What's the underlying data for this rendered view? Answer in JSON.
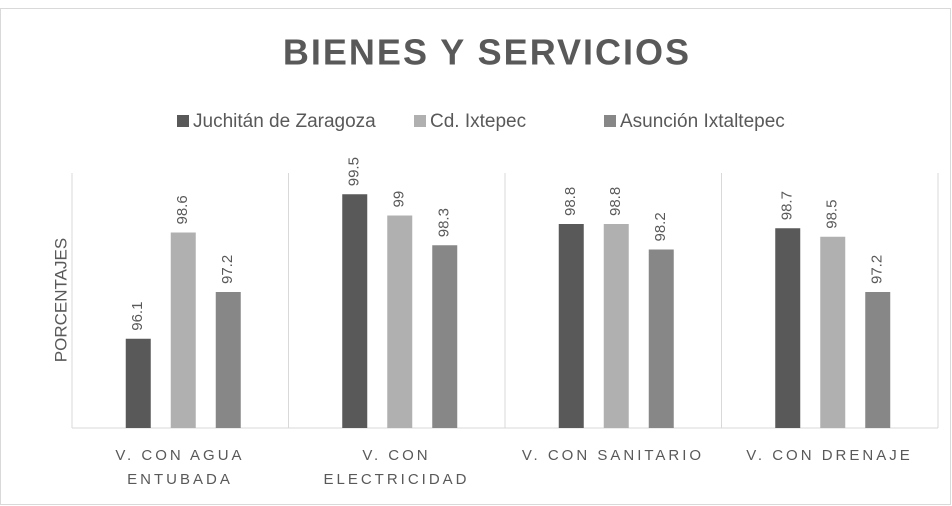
{
  "chart_data": {
    "type": "bar",
    "title": "BIENES Y SERVICIOS",
    "y_label": "PORCENTAJES",
    "categories": [
      "V. CON AGUA\nENTUBADA",
      "V. CON\nELECTRICIDAD",
      "V. CON SANITARIO",
      "V. CON DRENAJE"
    ],
    "series": [
      {
        "name": "Juchitán de Zaragoza",
        "color": "#595959",
        "values": [
          96.1,
          99.5,
          98.8,
          98.7
        ]
      },
      {
        "name": "Cd. Ixtepec",
        "color": "#b0b0b0",
        "values": [
          98.6,
          99,
          98.8,
          98.5
        ]
      },
      {
        "name": "Asunción Ixtaltepec",
        "color": "#878787",
        "values": [
          97.2,
          98.3,
          98.2,
          97.2
        ]
      }
    ],
    "ylim": [
      94,
      100
    ],
    "legend": "top"
  }
}
